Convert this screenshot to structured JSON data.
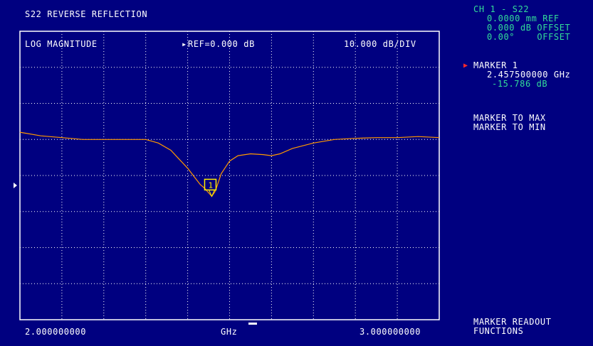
{
  "header": {
    "title": "S22 REVERSE REFLECTION",
    "format": "LOG MAGNITUDE",
    "ref_marker_glyph": "▸",
    "reference": "REF=0.000 dB",
    "scale": "10.000 dB/DIV"
  },
  "channel_info": {
    "channel": "CH 1 - S22",
    "line1": "0.0000 mm REF",
    "line2": "0.000 dB OFFSET",
    "line3": "0.00°    OFFSET"
  },
  "marker_readout": {
    "arrow_glyph": "▶",
    "label": "MARKER 1",
    "frequency": "2.457500000 GHz",
    "value": "-15.786 dB",
    "flag": "1"
  },
  "softkeys": {
    "marker_to_max": "MARKER TO MAX",
    "marker_to_min": "MARKER TO MIN",
    "title_line1": "MARKER READOUT",
    "title_line2": "FUNCTIONS"
  },
  "footer": {
    "start": "2.000000000",
    "unit": "GHz",
    "stop": "3.000000000"
  },
  "chart_data": {
    "type": "line",
    "title": "S22 REVERSE REFLECTION",
    "xlabel": "GHz",
    "ylabel": "",
    "xlim": [
      2.0,
      3.0
    ],
    "ylim": [
      -50,
      30
    ],
    "grid": true,
    "reference_level_db": 0.0,
    "db_per_div": 10.0,
    "series": [
      {
        "color": "#ff9900",
        "x": [
          2.0,
          2.05,
          2.1,
          2.15,
          2.2,
          2.25,
          2.3,
          2.33,
          2.36,
          2.38,
          2.4,
          2.42,
          2.43,
          2.44,
          2.45,
          2.4575,
          2.465,
          2.47,
          2.48,
          2.5,
          2.52,
          2.55,
          2.58,
          2.6,
          2.62,
          2.65,
          2.7,
          2.75,
          2.8,
          2.85,
          2.9,
          2.95,
          3.0
        ],
        "y": [
          2.0,
          1.0,
          0.5,
          0.0,
          0.0,
          0.0,
          0.0,
          -1.0,
          -3.0,
          -5.5,
          -8.0,
          -11.0,
          -12.5,
          -13.5,
          -14.8,
          -15.786,
          -14.5,
          -13.0,
          -9.5,
          -6.0,
          -4.5,
          -4.0,
          -4.2,
          -4.5,
          -4.0,
          -2.5,
          -1.0,
          0.0,
          0.3,
          0.5,
          0.5,
          0.8,
          0.5
        ]
      }
    ],
    "markers": [
      {
        "label": "1",
        "x": 2.4575,
        "y": -15.786
      }
    ]
  }
}
